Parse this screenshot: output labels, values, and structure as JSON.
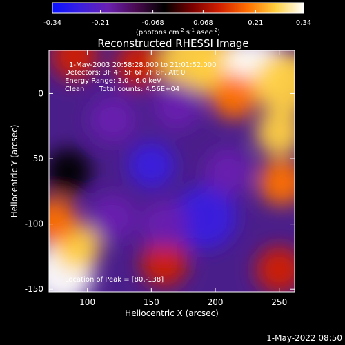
{
  "colorbar": {
    "ticks": [
      "-0.34",
      "-0.21",
      "-0.068",
      "0.068",
      "0.21",
      "0.34"
    ],
    "values": [
      -0.34,
      -0.21,
      -0.068,
      0.068,
      0.21,
      0.34
    ],
    "range": [
      -0.34,
      0.34
    ],
    "unit_main": "(photons cm",
    "unit_exp1": "-2",
    "unit_mid": " s",
    "unit_exp2": "-1",
    "unit_end": " asec",
    "unit_exp3": "-2",
    "unit_close": ")",
    "colors": [
      "#0a10ff",
      "#3a20e0",
      "#6a20b0",
      "#4a0a50",
      "#000000",
      "#7a0000",
      "#d22000",
      "#ff7000",
      "#ffd040",
      "#ffffff"
    ]
  },
  "chart_data": {
    "type": "heatmap",
    "title": "Reconstructed RHESSI Image",
    "xlabel": "Heliocentric X (arcsec)",
    "ylabel": "Heliocentric Y (arcsec)",
    "xlim": [
      70,
      262
    ],
    "ylim": [
      -152,
      33
    ],
    "xticks": [
      100,
      150,
      200,
      250
    ],
    "yticks": [
      0,
      -50,
      -100,
      -150
    ],
    "annotations": [
      "1-May-2003 20:58:28.000 to 21:01:52.000",
      "Detectors: 3F 4F 5F 6F 7F 8F, Att 0",
      "Energy Range: 3.0 - 6.0 keV",
      "Clean",
      "Total counts: 4.56E+04",
      "Location of Peak = [80,-138]"
    ],
    "peak_location": [
      80,
      -138
    ],
    "blobs": [
      {
        "x": 80,
        "y": -138,
        "v": 0.34
      },
      {
        "x": 92,
        "y": -118,
        "v": 0.24
      },
      {
        "x": 74,
        "y": -98,
        "v": 0.2
      },
      {
        "x": 180,
        "y": 25,
        "v": 0.3
      },
      {
        "x": 205,
        "y": 20,
        "v": 0.28
      },
      {
        "x": 232,
        "y": 18,
        "v": 0.34
      },
      {
        "x": 255,
        "y": 8,
        "v": 0.3
      },
      {
        "x": 215,
        "y": -2,
        "v": 0.22
      },
      {
        "x": 250,
        "y": -30,
        "v": 0.24
      },
      {
        "x": 252,
        "y": -68,
        "v": 0.22
      },
      {
        "x": 140,
        "y": 22,
        "v": 0.14
      },
      {
        "x": 90,
        "y": 28,
        "v": 0.08
      },
      {
        "x": 160,
        "y": -130,
        "v": 0.08
      },
      {
        "x": 250,
        "y": -135,
        "v": 0.1
      },
      {
        "x": 85,
        "y": -60,
        "v": -0.02
      },
      {
        "x": 150,
        "y": -55,
        "v": -0.24
      },
      {
        "x": 192,
        "y": -95,
        "v": -0.28
      },
      {
        "x": 120,
        "y": -20,
        "v": -0.2
      },
      {
        "x": 170,
        "y": -10,
        "v": -0.2
      },
      {
        "x": 210,
        "y": -60,
        "v": -0.22
      },
      {
        "x": 120,
        "y": -95,
        "v": -0.18
      },
      {
        "x": 160,
        "y": -100,
        "v": -0.22
      }
    ]
  },
  "footer": {
    "date": "1-May-2022 08:50"
  }
}
